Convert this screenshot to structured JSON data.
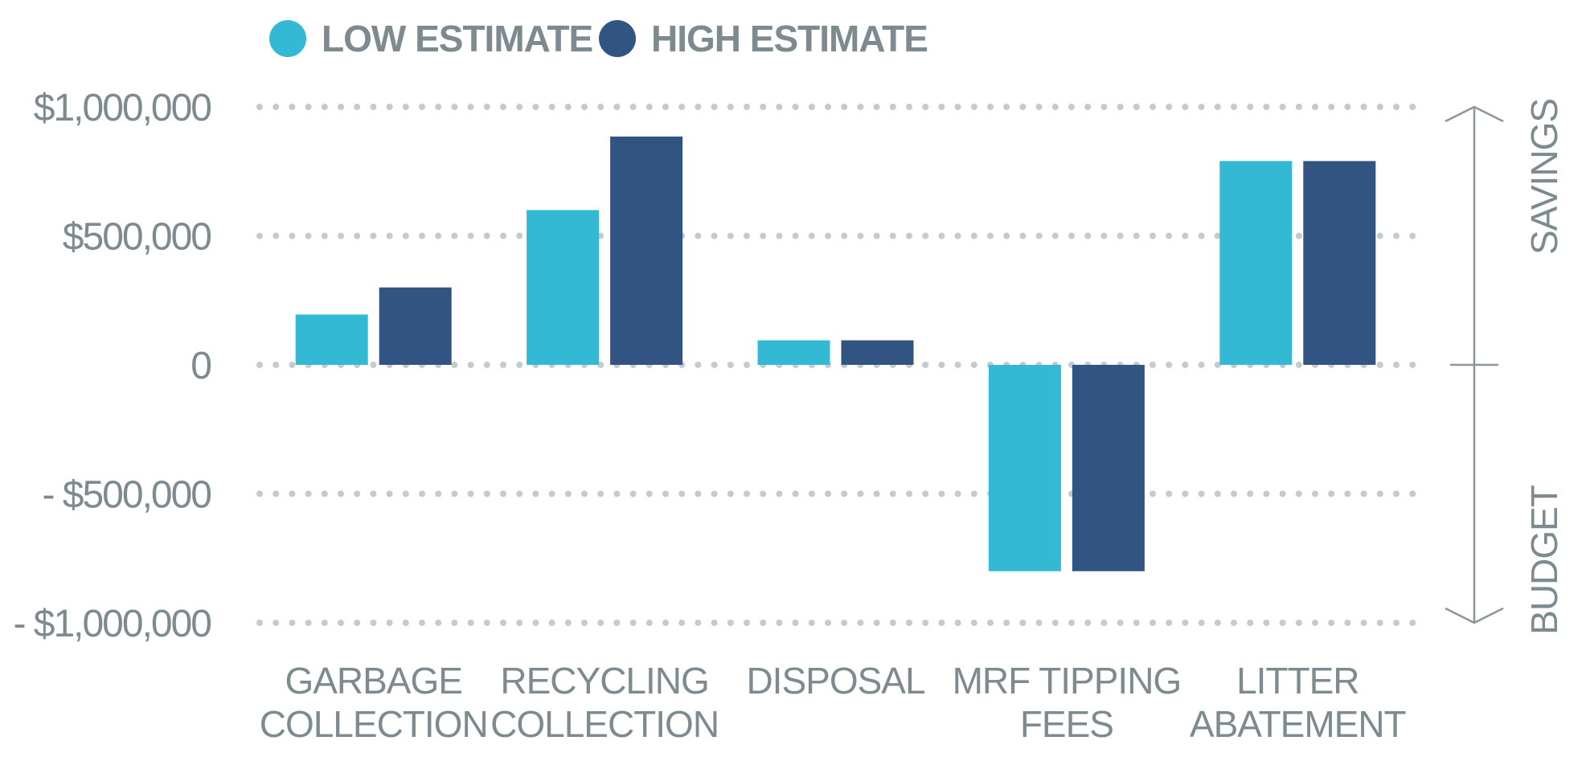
{
  "chart_data": {
    "type": "bar",
    "categories": [
      [
        "GARBAGE",
        "COLLECTION"
      ],
      [
        "RECYCLING",
        "COLLECTION"
      ],
      [
        "DISPOSAL"
      ],
      [
        "MRF TIPPING",
        "FEES"
      ],
      [
        "LITTER",
        "ABATEMENT"
      ]
    ],
    "series": [
      {
        "name": "LOW ESTIMATE",
        "color": "#33b9d4",
        "values": [
          195000,
          600000,
          95000,
          -800000,
          790000
        ]
      },
      {
        "name": "HIGH ESTIMATE",
        "color": "#315482",
        "values": [
          300000,
          885000,
          95000,
          -800000,
          790000
        ]
      }
    ],
    "ylim": [
      -1000000,
      1000000
    ],
    "yticks": [
      {
        "value": 1000000,
        "label": "$1,000,000"
      },
      {
        "value": 500000,
        "label": "$500,000"
      },
      {
        "value": 0,
        "label": "0"
      },
      {
        "value": -500000,
        "label": "- $500,000"
      },
      {
        "value": -1000000,
        "label": "- $1,000,000"
      }
    ],
    "grid": true,
    "legend_position": "top-left",
    "side_annotations": {
      "upper": "SAVINGS",
      "lower": "BUDGET"
    }
  }
}
